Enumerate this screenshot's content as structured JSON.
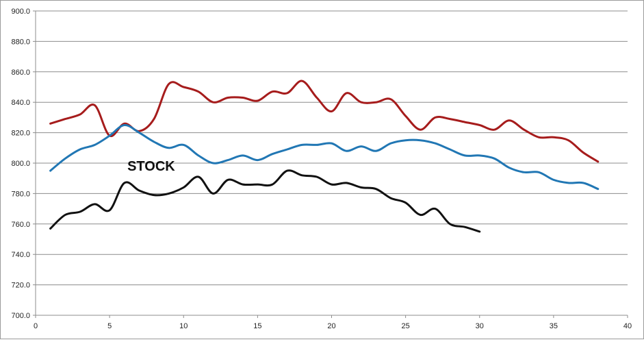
{
  "chart_data": {
    "type": "line",
    "title": "",
    "xlabel": "",
    "ylabel": "",
    "xlim": [
      0,
      40
    ],
    "ylim": [
      700,
      900
    ],
    "x_ticks": [
      0,
      5,
      10,
      15,
      20,
      25,
      30,
      35,
      40
    ],
    "y_ticks": [
      700,
      720,
      740,
      760,
      780,
      800,
      820,
      840,
      860,
      880,
      900
    ],
    "y_tick_labels": [
      "700.0",
      "720.0",
      "740.0",
      "760.0",
      "780.0",
      "800.0",
      "820.0",
      "840.0",
      "860.0",
      "880.0",
      "900.0"
    ],
    "grid": "horizontal",
    "legend": "none",
    "annotations": [
      {
        "text": "STOCK",
        "x": 6.2,
        "y": 795,
        "series": 2
      }
    ],
    "series": [
      {
        "color": "#a61c1c",
        "x": [
          1,
          2,
          3,
          4,
          5,
          6,
          7,
          8,
          9,
          10,
          11,
          12,
          13,
          14,
          15,
          16,
          17,
          18,
          19,
          20,
          21,
          22,
          23,
          24,
          25,
          26,
          27,
          28,
          29,
          30,
          31,
          32,
          33,
          34,
          35,
          36,
          37,
          38
        ],
        "values": [
          826,
          829,
          832,
          838,
          818,
          826,
          821,
          829,
          852,
          850,
          847,
          840,
          843,
          843,
          841,
          847,
          846,
          854,
          843,
          834,
          846,
          840,
          840,
          842,
          831,
          822,
          830,
          829,
          827,
          825,
          822,
          828,
          822,
          817,
          817,
          815,
          807,
          801
        ]
      },
      {
        "color": "#2177b4",
        "x": [
          1,
          2,
          3,
          4,
          5,
          6,
          7,
          8,
          9,
          10,
          11,
          12,
          13,
          14,
          15,
          16,
          17,
          18,
          19,
          20,
          21,
          22,
          23,
          24,
          25,
          26,
          27,
          28,
          29,
          30,
          31,
          32,
          33,
          34,
          35,
          36,
          37,
          38
        ],
        "values": [
          795,
          803,
          809,
          812,
          818,
          825,
          820,
          814,
          810,
          812,
          805,
          800,
          802,
          805,
          802,
          806,
          809,
          812,
          812,
          813,
          808,
          811,
          808,
          813,
          815,
          815,
          813,
          809,
          805,
          805,
          803,
          797,
          794,
          794,
          789,
          787,
          787,
          783
        ]
      },
      {
        "color": "#111111",
        "x": [
          1,
          2,
          3,
          4,
          5,
          6,
          7,
          8,
          9,
          10,
          11,
          12,
          13,
          14,
          15,
          16,
          17,
          18,
          19,
          20,
          21,
          22,
          23,
          24,
          25,
          26,
          27,
          28,
          29,
          30
        ],
        "values": [
          757,
          766,
          768,
          773,
          769,
          787,
          782,
          779,
          780,
          784,
          791,
          780,
          789,
          786,
          786,
          786,
          795,
          792,
          791,
          786,
          787,
          784,
          783,
          777,
          774,
          766,
          770,
          760,
          758,
          755
        ]
      }
    ]
  }
}
